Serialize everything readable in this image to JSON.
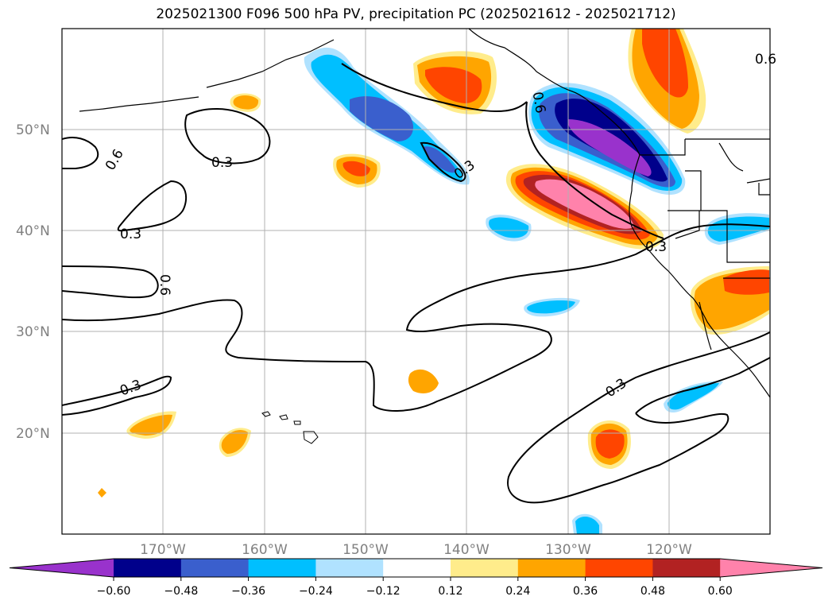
{
  "title": "2025021300 F096 500 hPa PV, precipitation PC (2025021612 - 2025021712)",
  "map": {
    "lat_labels": [
      "50°N",
      "40°N",
      "30°N",
      "20°N"
    ],
    "lon_labels": [
      "170°W",
      "160°W",
      "150°W",
      "140°W",
      "130°W",
      "120°W"
    ],
    "contour_labels": [
      "0.6",
      "0.3",
      "0.3",
      "0.6",
      "0.3",
      "0.6",
      "0.3",
      "0.6",
      "0.3",
      "0.3"
    ]
  },
  "colorbar": {
    "ticks": [
      "−0.60",
      "−0.48",
      "−0.36",
      "−0.24",
      "−0.12",
      "0.12",
      "0.24",
      "0.36",
      "0.48",
      "0.60"
    ],
    "colors": [
      "#9932cc",
      "#00008b",
      "#3a5fcd",
      "#00bfff",
      "#b0e2ff",
      "#ffffff",
      "#ffec8b",
      "#ffa500",
      "#ff4500",
      "#b22222",
      "#ff82ab"
    ]
  }
}
